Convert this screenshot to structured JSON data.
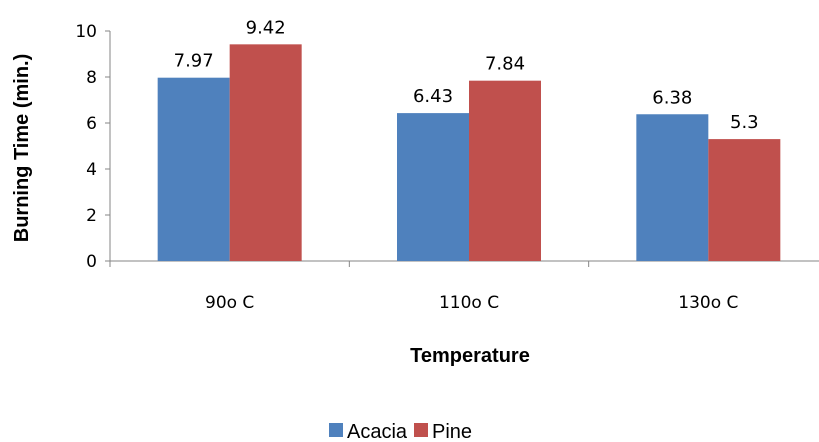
{
  "chart_data": {
    "type": "bar",
    "categories": [
      "90o C",
      "110o C",
      "130o C"
    ],
    "series": [
      {
        "name": "Acacia",
        "values": [
          7.97,
          6.43,
          6.38
        ],
        "labels": [
          "7.97",
          "6.43",
          "6.38"
        ],
        "color": "#4F81BD"
      },
      {
        "name": "Pine",
        "values": [
          9.42,
          7.84,
          5.3
        ],
        "labels": [
          "9.42",
          "7.84",
          "5.3"
        ],
        "color": "#C0504D"
      }
    ],
    "title": "",
    "xlabel": "Temperature",
    "ylabel": "Burning Time (min.)",
    "ylim": [
      0,
      10
    ],
    "yticks": [
      "0",
      "2",
      "4",
      "6",
      "8",
      "10"
    ],
    "grid": false,
    "legend_position": "bottom"
  }
}
